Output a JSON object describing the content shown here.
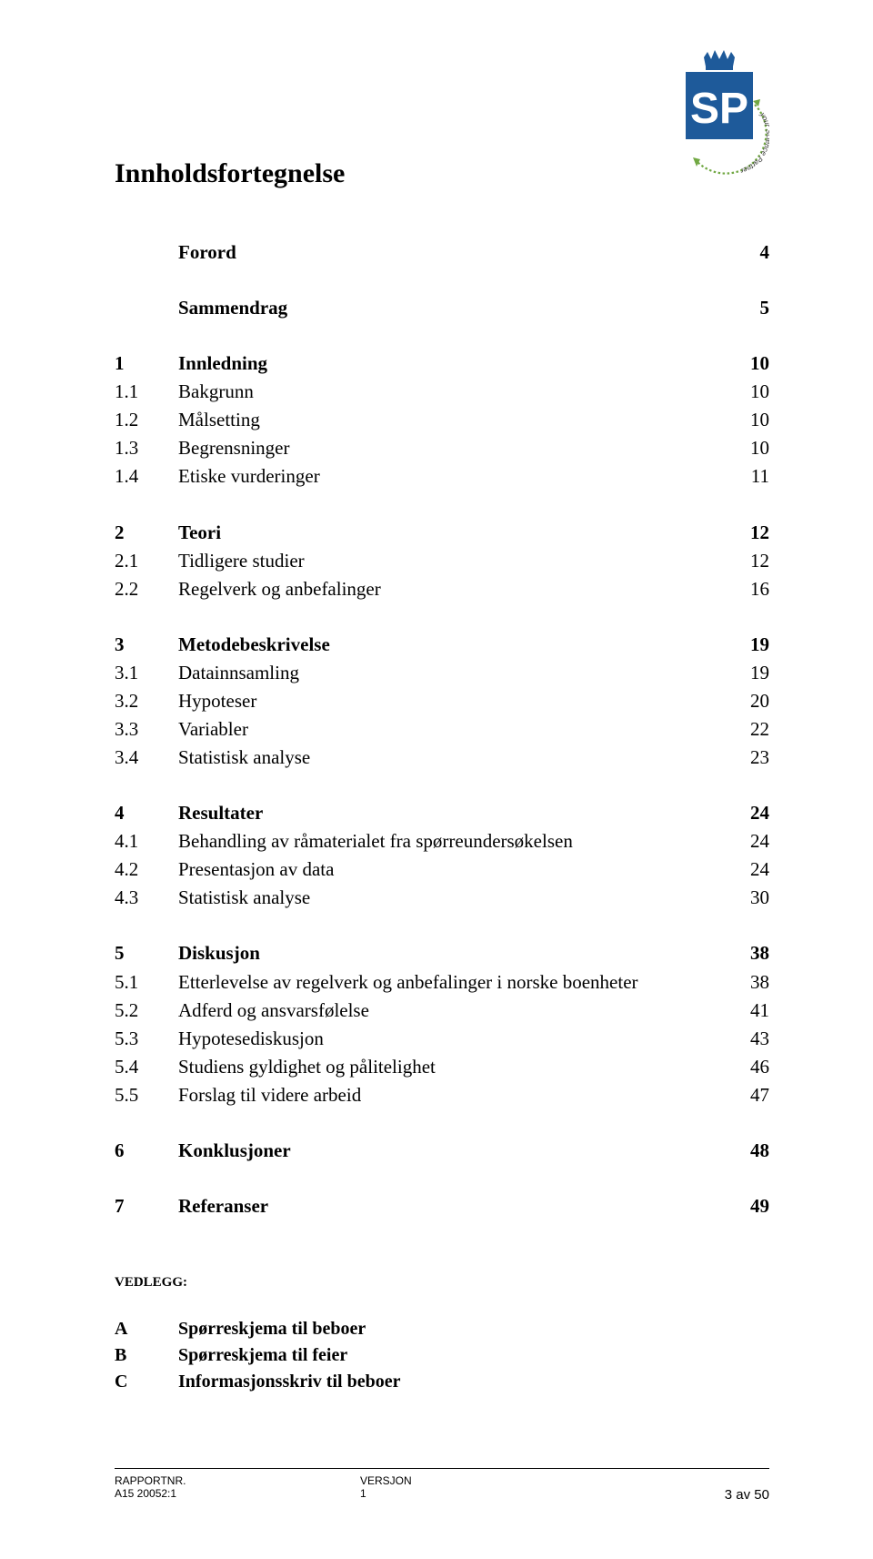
{
  "logo": {
    "box_color": "#1e5a9a",
    "text": "SP",
    "swoosh_color": "#71a843",
    "subtext": "your Science Partner"
  },
  "title": "Innholdsfortegnelse",
  "sections": [
    {
      "rows": [
        {
          "num": "",
          "label": "Forord",
          "page": "4",
          "bold": true
        }
      ]
    },
    {
      "rows": [
        {
          "num": "",
          "label": "Sammendrag",
          "page": "5",
          "bold": true
        }
      ]
    },
    {
      "rows": [
        {
          "num": "1",
          "label": "Innledning",
          "page": "10",
          "bold": true
        },
        {
          "num": "1.1",
          "label": "Bakgrunn",
          "page": "10",
          "bold": false
        },
        {
          "num": "1.2",
          "label": "Målsetting",
          "page": "10",
          "bold": false
        },
        {
          "num": "1.3",
          "label": "Begrensninger",
          "page": "10",
          "bold": false
        },
        {
          "num": "1.4",
          "label": "Etiske vurderinger",
          "page": "11",
          "bold": false
        }
      ]
    },
    {
      "rows": [
        {
          "num": "2",
          "label": "Teori",
          "page": "12",
          "bold": true
        },
        {
          "num": "2.1",
          "label": "Tidligere studier",
          "page": "12",
          "bold": false
        },
        {
          "num": "2.2",
          "label": "Regelverk og anbefalinger",
          "page": "16",
          "bold": false
        }
      ]
    },
    {
      "rows": [
        {
          "num": "3",
          "label": "Metodebeskrivelse",
          "page": "19",
          "bold": true
        },
        {
          "num": "3.1",
          "label": "Datainnsamling",
          "page": "19",
          "bold": false
        },
        {
          "num": "3.2",
          "label": "Hypoteser",
          "page": "20",
          "bold": false
        },
        {
          "num": "3.3",
          "label": "Variabler",
          "page": "22",
          "bold": false
        },
        {
          "num": "3.4",
          "label": "Statistisk analyse",
          "page": "23",
          "bold": false
        }
      ]
    },
    {
      "rows": [
        {
          "num": "4",
          "label": "Resultater",
          "page": "24",
          "bold": true
        },
        {
          "num": "4.1",
          "label": "Behandling av råmaterialet fra spørreundersøkelsen",
          "page": "24",
          "bold": false
        },
        {
          "num": "4.2",
          "label": "Presentasjon av data",
          "page": "24",
          "bold": false
        },
        {
          "num": "4.3",
          "label": "Statistisk analyse",
          "page": "30",
          "bold": false
        }
      ]
    },
    {
      "rows": [
        {
          "num": "5",
          "label": "Diskusjon",
          "page": "38",
          "bold": true
        },
        {
          "num": "5.1",
          "label": "Etterlevelse av regelverk og anbefalinger  i norske boenheter",
          "page": "38",
          "bold": false
        },
        {
          "num": "5.2",
          "label": "Adferd og ansvarsfølelse",
          "page": "41",
          "bold": false
        },
        {
          "num": "5.3",
          "label": "Hypotesediskusjon",
          "page": "43",
          "bold": false
        },
        {
          "num": "5.4",
          "label": "Studiens gyldighet og pålitelighet",
          "page": "46",
          "bold": false
        },
        {
          "num": "5.5",
          "label": "Forslag til videre arbeid",
          "page": "47",
          "bold": false
        }
      ]
    },
    {
      "rows": [
        {
          "num": "6",
          "label": "Konklusjoner",
          "page": "48",
          "bold": true
        }
      ]
    },
    {
      "rows": [
        {
          "num": "7",
          "label": "Referanser",
          "page": "49",
          "bold": true
        }
      ]
    }
  ],
  "vedlegg_header": "VEDLEGG:",
  "vedlegg": [
    {
      "letter": "A",
      "label": "Spørreskjema til beboer"
    },
    {
      "letter": "B",
      "label": "Spørreskjema til feier"
    },
    {
      "letter": "C",
      "label": "Informasjonsskriv til beboer"
    }
  ],
  "footer": {
    "col1_header": "RAPPORTNR.",
    "col1_value": "A15 20052:1",
    "col2_header": "VERSJON",
    "col2_value": "1",
    "col3_value": "3 av 50"
  }
}
